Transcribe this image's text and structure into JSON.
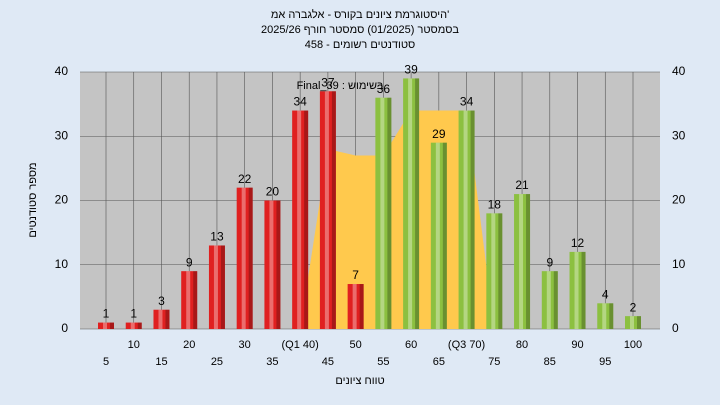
{
  "chart_data": {
    "type": "bar",
    "title": "היסטוגרמת ציונים בקורס - אלגברה אמ'",
    "subtitle": "בסמסטר (01/2025) סמסטר חורף 2025/26",
    "subtitle2": "458 - סטודנטים רשומים",
    "annotation": "Final_39 : בשימוש",
    "x_label": "טווח ציונים",
    "y_label": "מספר סטודנטים",
    "categories": [
      "5",
      "10",
      "15",
      "20",
      "25",
      "30",
      "35",
      "(Q1 40)",
      "45",
      "50",
      "55",
      "60",
      "65",
      "(Q3 70)",
      "75",
      "80",
      "85",
      "90",
      "95",
      "100"
    ],
    "values": [
      1,
      1,
      3,
      9,
      13,
      22,
      20,
      34,
      37,
      7,
      36,
      39,
      29,
      34,
      18,
      21,
      9,
      12,
      4,
      2
    ],
    "colors": [
      "#e02020",
      "#e02020",
      "#e02020",
      "#e02020",
      "#e02020",
      "#e02020",
      "#e02020",
      "#e02020",
      "#e02020",
      "#e02020",
      "#8cc040",
      "#8cc040",
      "#8cc040",
      "#8cc040",
      "#8cc040",
      "#8cc040",
      "#8cc040",
      "#8cc040",
      "#8cc040",
      "#8cc040"
    ],
    "area": {
      "color": "#ffc94d",
      "values": [
        null,
        null,
        null,
        null,
        null,
        null,
        null,
        0,
        28,
        27,
        27,
        34,
        34,
        34,
        0,
        null,
        null,
        null,
        null,
        null
      ]
    },
    "ylim": [
      0,
      40
    ],
    "yticks": [
      0,
      10,
      20,
      30,
      40
    ],
    "grid": true
  }
}
